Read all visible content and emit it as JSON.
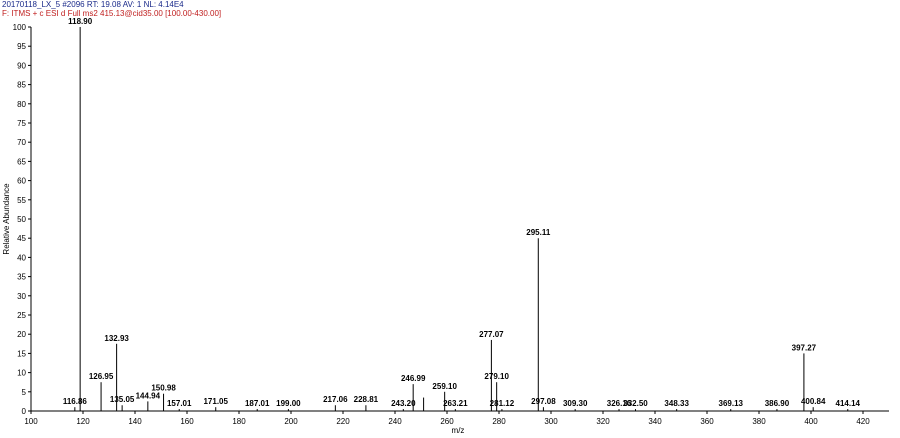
{
  "chart_data": {
    "type": "spectrum",
    "title": "20170118_LX_5 #2096  RT: 19.08  AV: 1  NL: 4.14E4",
    "subtitle": "F: ITMS + c ESI d Full ms2 415.13@cid35.00 [100.00-430.00]",
    "x_label": "m/z",
    "y_label": "Relative Abundance",
    "color": "#000000",
    "x": [
      {
        "value": 116.86,
        "label": "116.86"
      },
      {
        "value": 118.9,
        "label": "118.90"
      },
      {
        "value": 126.95,
        "label": "126.95"
      },
      {
        "value": 132.93,
        "label": "132.93"
      },
      {
        "value": 135.05,
        "label": "135.05"
      },
      {
        "value": 144.94,
        "label": "144.94"
      },
      {
        "value": 150.98,
        "label": "150.98"
      },
      {
        "value": 157.01,
        "label": "157.01"
      },
      {
        "value": 171.05,
        "label": "171.05"
      },
      {
        "value": 187.01,
        "label": "187.01"
      },
      {
        "value": 199.0,
        "label": "199.00"
      },
      {
        "value": 217.06,
        "label": "217.06"
      },
      {
        "value": 228.81,
        "label": "228.81"
      },
      {
        "value": 243.2,
        "label": "243.20"
      },
      {
        "value": 246.99,
        "label": "246.99"
      },
      251,
      {
        "value": 259.1,
        "label": "259.10"
      },
      {
        "value": 263.21,
        "label": "263.21"
      },
      {
        "value": 277.07,
        "label": "277.07"
      },
      {
        "value": 279.1,
        "label": "279.10"
      },
      {
        "value": 281.12,
        "label": "281.12"
      },
      {
        "value": 295.11,
        "label": "295.11"
      },
      {
        "value": 297.08,
        "label": "297.08"
      },
      {
        "value": 309.3,
        "label": "309.30"
      },
      {
        "value": 326.16,
        "label": "326.16"
      },
      {
        "value": 332.5,
        "label": "332.50"
      },
      {
        "value": 348.33,
        "label": "348.33"
      },
      {
        "value": 369.13,
        "label": "369.13"
      },
      {
        "value": 386.9,
        "label": "386.90"
      },
      {
        "value": 397.27,
        "label": "397.27"
      },
      {
        "value": 400.84,
        "label": "400.84"
      },
      {
        "value": 414.14,
        "label": "414.14"
      }
    ],
    "values": [
      1,
      100,
      7.5,
      17.5,
      1.5,
      2.5,
      4.5,
      0.5,
      1,
      0.5,
      0.5,
      1.5,
      1.5,
      0.5,
      7,
      3.5,
      5,
      0.5,
      18.5,
      7.5,
      0.5,
      45,
      1,
      0.5,
      0.5,
      0.5,
      0.5,
      0.5,
      0.5,
      15,
      1,
      0.5
    ],
    "xlim": [
      100,
      430
    ],
    "xticks": [
      100,
      120,
      140,
      160,
      180,
      200,
      220,
      240,
      260,
      280,
      300,
      320,
      340,
      360,
      380,
      400,
      420
    ],
    "ylim": [
      0,
      100
    ],
    "yticks": [
      0,
      5,
      10,
      15,
      20,
      25,
      30,
      35,
      40,
      45,
      50,
      55,
      60,
      65,
      70,
      75,
      80,
      85,
      90,
      95,
      100
    ]
  }
}
